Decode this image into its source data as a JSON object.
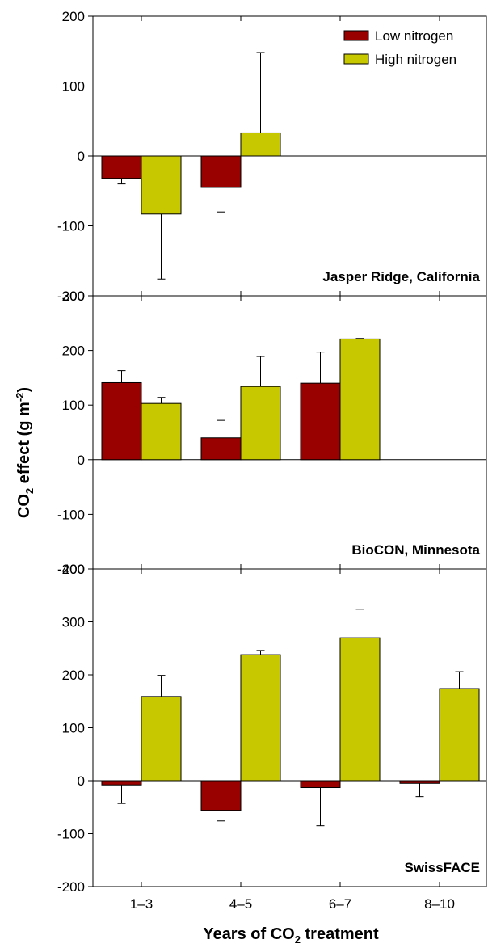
{
  "chart_data": {
    "type": "bar",
    "ylabel": {
      "main": "CO",
      "sub": "2",
      "rest": " effect (g m",
      "sup": "-2",
      "close": ")"
    },
    "xlabel": {
      "main": "Years of CO",
      "sub": "2",
      "rest": " treatment"
    },
    "categories": [
      "1–3",
      "4–5",
      "6–7",
      "8–10"
    ],
    "legend": {
      "position": "top-right",
      "entries": [
        {
          "name": "Low nitrogen",
          "color": "#990000"
        },
        {
          "name": "High nitrogen",
          "color": "#c8c800"
        }
      ]
    },
    "panels": [
      {
        "title": "Jasper Ridge, California",
        "ylim": [
          -200,
          200
        ],
        "yticks": [
          "200",
          "100",
          "0",
          "-100",
          "-200"
        ],
        "yticks_values": [
          200,
          100,
          0,
          -100,
          -200
        ],
        "series": [
          {
            "name": "Low nitrogen",
            "values": [
              -32,
              -45,
              null,
              null
            ],
            "errors": [
              8,
              35,
              null,
              null
            ]
          },
          {
            "name": "High nitrogen",
            "values": [
              -83,
              33,
              null,
              null
            ],
            "errors": [
              93,
              115,
              null,
              null
            ]
          }
        ]
      },
      {
        "title": "BioCON, Minnesota",
        "ylim": [
          -200,
          300
        ],
        "yticks": [
          "300",
          "200",
          "100",
          "0",
          "-100",
          "-200"
        ],
        "yticks_values": [
          300,
          200,
          100,
          0,
          -100,
          -200
        ],
        "series": [
          {
            "name": "Low nitrogen",
            "values": [
              141,
              40,
              140,
              null
            ],
            "errors": [
              22,
              32,
              57,
              null
            ]
          },
          {
            "name": "High nitrogen",
            "values": [
              103,
              134,
              221,
              null
            ],
            "errors": [
              11,
              55,
              1,
              null
            ]
          }
        ]
      },
      {
        "title": "SwissFACE",
        "ylim": [
          -200,
          400
        ],
        "yticks": [
          "400",
          "300",
          "200",
          "100",
          "0",
          "-100",
          "-200"
        ],
        "yticks_values": [
          400,
          300,
          200,
          100,
          0,
          -100,
          -200
        ],
        "series": [
          {
            "name": "Low nitrogen",
            "values": [
              -8,
              -56,
              -13,
              -5
            ],
            "errors": [
              35,
              20,
              72,
              25
            ]
          },
          {
            "name": "High nitrogen",
            "values": [
              159,
              238,
              270,
              174
            ],
            "errors": [
              40,
              8,
              54,
              32
            ]
          }
        ]
      }
    ],
    "grid": false
  }
}
